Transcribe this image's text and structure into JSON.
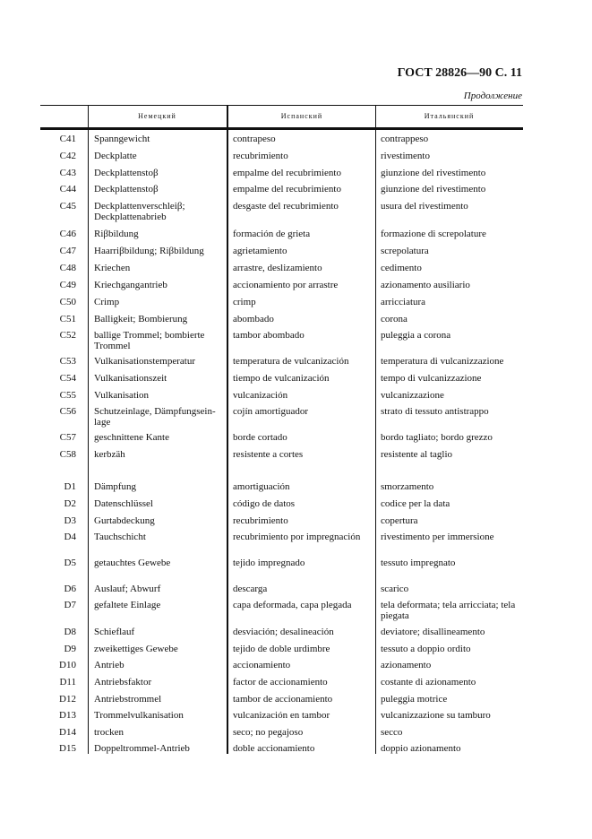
{
  "header": {
    "title": "ГОСТ 28826—90 С. 11",
    "continuation": "Продолжение"
  },
  "columns": [
    "",
    "Немецкий",
    "Испанский",
    "Итальянский"
  ],
  "rows": [
    [
      "C41",
      "Spanngewicht",
      "contrapeso",
      "contrappeso"
    ],
    [
      "C42",
      "Deckplatte",
      "recubrimiento",
      "rivestimento"
    ],
    [
      "C43",
      "Deckplattenstoβ",
      "empalme del recubrimiento",
      "giunzione del rivestimento"
    ],
    [
      "C44",
      "Deckplattenstoβ",
      "empalme del recubrimiento",
      "giunzione del rivestimento"
    ],
    [
      "C45",
      "Deckplattenverschleiβ; Deckplattenabrieb",
      "desgaste del recubrimiento",
      "usura del rivestimento"
    ],
    [
      "C46",
      "Riβbildung",
      "formación de grieta",
      "formazione di screpolature"
    ],
    [
      "C47",
      "Haarriβbildung; Riβbildung",
      "agrietamiento",
      "screpolatura"
    ],
    [
      "C48",
      "Kriechen",
      "arrastre, deslizamiento",
      "cedimento"
    ],
    [
      "C49",
      "Kriechgangantrieb",
      "accionamiento por arrastre",
      "azionamento ausiliario"
    ],
    [
      "C50",
      "Crimp",
      "crimp",
      "arricciatura"
    ],
    [
      "C51",
      "Balligkeit; Bombierung",
      "abombado",
      "corona"
    ],
    [
      "C52",
      "ballige Trommel; bombierte Trommel",
      "tambor abombado",
      "puleggia a corona"
    ],
    [
      "C53",
      "Vulkanisationstemperatur",
      "temperatura de vulcanización",
      "temperatura di vulcanizzazione"
    ],
    [
      "C54",
      "Vulkanisationszeit",
      "tiempo de vulcanización",
      "tempo di vulcanizzazione"
    ],
    [
      "C55",
      "Vulkanisation",
      "vulcanización",
      "vulcanizzazione"
    ],
    [
      "C56",
      "Schutzeinlage, Dämpfungsein-lage",
      "cojín amortiguador",
      "strato di tessuto antistrappo"
    ],
    [
      "C57",
      "geschnittene Kante",
      "borde cortado",
      "bordo tagliato; bordo grezzo"
    ],
    [
      "C58",
      "kerbzäh",
      "resistente a cortes",
      "resistente al taglio"
    ],
    [
      "D1",
      "Dämpfung",
      "amortiguación",
      "smorzamento"
    ],
    [
      "D2",
      "Datenschlüssel",
      "código de datos",
      "codice per la data"
    ],
    [
      "D3",
      "Gurtabdeckung",
      "recubrimiento",
      "copertura"
    ],
    [
      "D4",
      "Tauchschicht",
      "recubrimiento por impregnación",
      "rivestimento per immersione"
    ],
    [
      "D5",
      "getauchtes Gewebe",
      "tejido impregnado",
      "tessuto impregnato"
    ],
    [
      "D6",
      "Auslauf; Abwurf",
      "descarga",
      "scarico"
    ],
    [
      "D7",
      "gefaltete Einlage",
      "capa deformada, capa plegada",
      "tela deformata; tela arricciata; tela piegata"
    ],
    [
      "D8",
      "Schieflauf",
      "desviación; desalineación",
      "deviatore; disallineamento"
    ],
    [
      "D9",
      "zweikettiges Gewebe",
      "tejido de doble urdimbre",
      "tessuto a doppio ordito"
    ],
    [
      "D10",
      "Antrieb",
      "accionamiento",
      "azionamento"
    ],
    [
      "D11",
      "Antriebsfaktor",
      "factor de accionamiento",
      "costante di azionamento"
    ],
    [
      "D12",
      "Antriebstrommel",
      "tambor de accionamiento",
      "puleggia motrice"
    ],
    [
      "D13",
      "Trommelvulkanisation",
      "vulcanización en tambor",
      "vulcanizzazione su tamburo"
    ],
    [
      "D14",
      "trocken",
      "seco; no pegajoso",
      "secco"
    ],
    [
      "D15",
      "Doppeltrommel-Antrieb",
      "doble accionamiento",
      "doppio azionamento"
    ]
  ]
}
